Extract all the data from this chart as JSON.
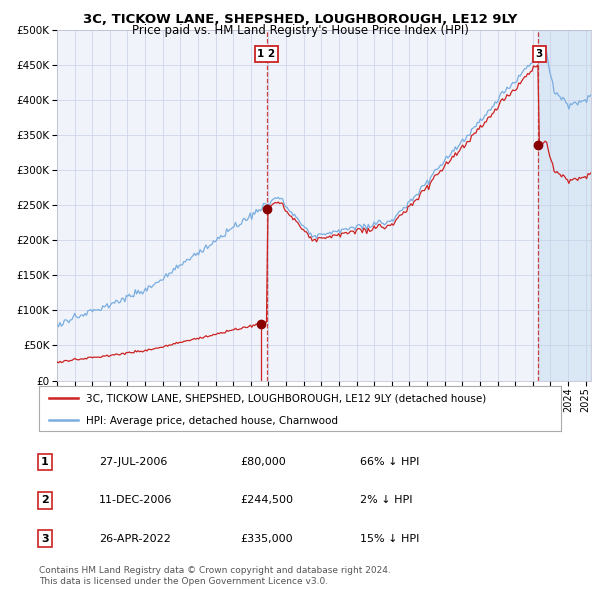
{
  "title": "3C, TICKOW LANE, SHEPSHED, LOUGHBOROUGH, LE12 9LY",
  "subtitle": "Price paid vs. HM Land Registry's House Price Index (HPI)",
  "legend_line1": "3C, TICKOW LANE, SHEPSHED, LOUGHBOROUGH, LE12 9LY (detached house)",
  "legend_line2": "HPI: Average price, detached house, Charnwood",
  "footer1": "Contains HM Land Registry data © Crown copyright and database right 2024.",
  "footer2": "This data is licensed under the Open Government Licence v3.0.",
  "hpi_color": "#7aade0",
  "price_color": "#cc2222",
  "vline_color": "#cc2222",
  "dot_color": "#880000",
  "plot_bg": "#f0f4fa",
  "grid_color": "#c8cfe8",
  "ylim": [
    0,
    500000
  ],
  "xlim_start": 1995.0,
  "xlim_end": 2025.3,
  "t1_year": 2006.57,
  "t1_price": 80000,
  "t2_year": 2006.94,
  "t2_price": 244500,
  "t3_year": 2022.32,
  "t3_price": 335000,
  "shade_from": 2022.32,
  "rows": [
    {
      "id": "1",
      "date": "27-JUL-2006",
      "price": "£80,000",
      "hpi": "66% ↓ HPI"
    },
    {
      "id": "2",
      "date": "11-DEC-2006",
      "price": "£244,500",
      "hpi": "2% ↓ HPI"
    },
    {
      "id": "3",
      "date": "26-APR-2022",
      "price": "£335,000",
      "hpi": "15% ↓ HPI"
    }
  ]
}
